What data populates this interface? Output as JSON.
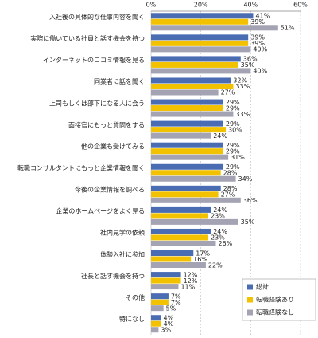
{
  "chart_data": {
    "type": "bar",
    "orientation": "horizontal",
    "categories": [
      "入社後の具体的な仕事内容を聞く",
      "実際に働いている社員と話す機会を持つ",
      "インターネットの口コミ情報を見る",
      "同業者に話を聞く",
      "上司もしくは部下になる人に会う",
      "面接官にもっと質問をする",
      "他の企業も受けてみる",
      "転職コンサルタントにもっと企業情報を聞く",
      "今後の企業情報を調べる",
      "企業のホームページをよく見る",
      "社内見学の依頼",
      "体験入社に参加",
      "社長と話す機会を持つ",
      "その他",
      "特になし"
    ],
    "series": [
      {
        "name": "総計",
        "color": "#4a6cb3",
        "values": [
          41,
          39,
          36,
          32,
          29,
          29,
          29,
          29,
          28,
          24,
          24,
          17,
          12,
          7,
          4
        ],
        "value_labels": [
          "41%",
          "39%",
          "36%",
          "32%",
          "29%",
          "29%",
          "29%",
          "29%",
          "28%",
          "24%",
          "24%",
          "17%",
          "12%",
          "7%",
          "4%"
        ]
      },
      {
        "name": "転職経験あり",
        "color": "#f2c200",
        "values": [
          39,
          39,
          35,
          33,
          29,
          30,
          29,
          28,
          27,
          23,
          23,
          16,
          12,
          7,
          4
        ],
        "value_labels": [
          "39%",
          "39%",
          "35%",
          "33%",
          "29%",
          "30%",
          "29%",
          "28%",
          "27%",
          "23%",
          "23%",
          "16%",
          "12%",
          "7%",
          "4%"
        ]
      },
      {
        "name": "転職経験なし",
        "color": "#a3a3b3",
        "values": [
          51,
          40,
          40,
          27,
          33,
          24,
          31,
          34,
          36,
          35,
          26,
          22,
          11,
          5,
          3
        ],
        "value_labels": [
          "51%",
          "40%",
          "40%",
          "27%",
          "33%",
          "24%",
          "31%",
          "34%",
          "36%",
          "35%",
          "26%",
          "22%",
          "11%",
          "5%",
          "3%"
        ]
      }
    ],
    "xlim": [
      0,
      60
    ],
    "xticks": [
      {
        "value": 0,
        "label": "0%"
      },
      {
        "value": 20,
        "label": "20%"
      },
      {
        "value": 40,
        "label": "40%"
      },
      {
        "value": 60,
        "label": "60%"
      }
    ],
    "grid": true,
    "legend": "lower right"
  }
}
